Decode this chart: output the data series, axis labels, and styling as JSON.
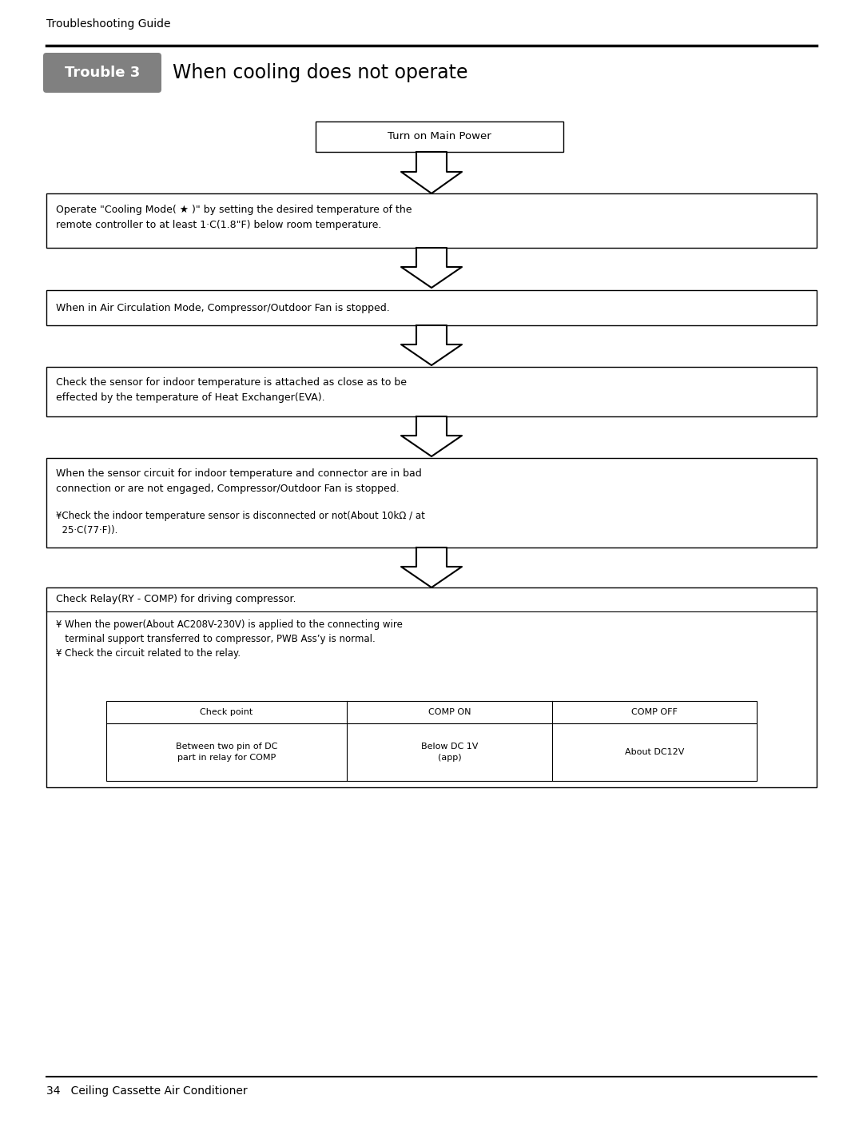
{
  "page_width": 10.8,
  "page_height": 14.05,
  "bg_color": "#ffffff",
  "header_text": "Troubleshooting Guide",
  "header_fontsize": 10,
  "trouble_badge_text": "Trouble 3",
  "trouble_badge_color": "#808080",
  "trouble_title": "When cooling does not operate",
  "trouble_title_fontsize": 17,
  "footer_text": "34   Ceiling Cassette Air Conditioner",
  "footer_fontsize": 10,
  "box1_text": "Turn on Main Power",
  "box2_text": "Operate \"Cooling Mode( ★ )\" by setting the desired temperature of the\nremote controller to at least 1·C(1.8\"F) below room temperature.",
  "box3_text": "When in Air Circulation Mode, Compressor/Outdoor Fan is stopped.",
  "box4_text": "Check the sensor for indoor temperature is attached as close as to be\neffected by the temperature of Heat Exchanger(EVA).",
  "box5_text_main": "When the sensor circuit for indoor temperature and connector are in bad\nconnection or are not engaged, Compressor/Outdoor Fan is stopped.",
  "box5_text_sub": "¥Check the indoor temperature sensor is disconnected or not(About 10kΩ / at\n  25·C(77·F)).",
  "box6_title": "Check Relay(RY - COMP) for driving compressor.",
  "box6_bullet1": "¥ When the power(About AC208V-230V) is applied to the connecting wire\n   terminal support transferred to compressor, PWB Ass’y is normal.\n¥ Check the circuit related to the relay.",
  "table_headers": [
    "Check point",
    "COMP ON",
    "COMP OFF"
  ],
  "table_row1": [
    "Between two pin of DC\npart in relay for COMP",
    "Below DC 1V\n(app)",
    "About DC12V"
  ]
}
